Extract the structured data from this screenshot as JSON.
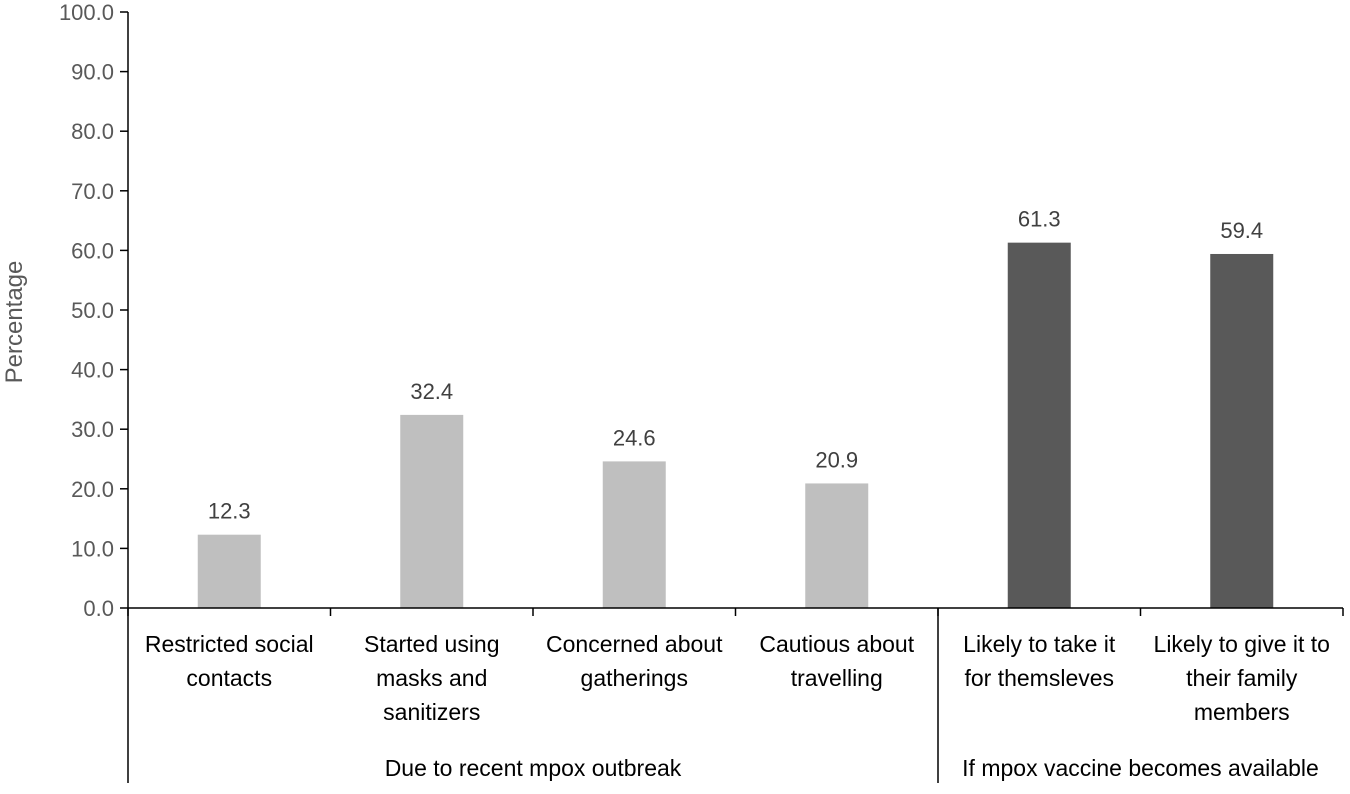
{
  "chart_data": {
    "type": "bar",
    "ylabel": "Percentage",
    "ylim": [
      0,
      100
    ],
    "yticks": [
      0,
      10,
      20,
      30,
      40,
      50,
      60,
      70,
      80,
      90,
      100
    ],
    "ytick_labels": [
      "0.0",
      "10.0",
      "20.0",
      "30.0",
      "40.0",
      "50.0",
      "60.0",
      "70.0",
      "80.0",
      "90.0",
      "100.0"
    ],
    "grid": false,
    "categories": [
      [
        "Restricted social",
        "contacts"
      ],
      [
        "Started using",
        "masks and",
        "sanitizers"
      ],
      [
        "Concerned about",
        "gatherings"
      ],
      [
        "Cautious about",
        "travelling"
      ],
      [
        "Likely to take it",
        "for themsleves"
      ],
      [
        "Likely to give it to",
        "their family",
        "members"
      ]
    ],
    "values": [
      12.3,
      32.4,
      24.6,
      20.9,
      61.3,
      59.4
    ],
    "value_labels": [
      "12.3",
      "32.4",
      "24.6",
      "20.9",
      "61.3",
      "59.4"
    ],
    "groups": [
      {
        "label": "Due to recent mpox outbreak",
        "count": 4,
        "color": "#bfbfbf"
      },
      {
        "label": "If mpox vaccine becomes available",
        "count": 2,
        "color": "#595959"
      }
    ]
  }
}
